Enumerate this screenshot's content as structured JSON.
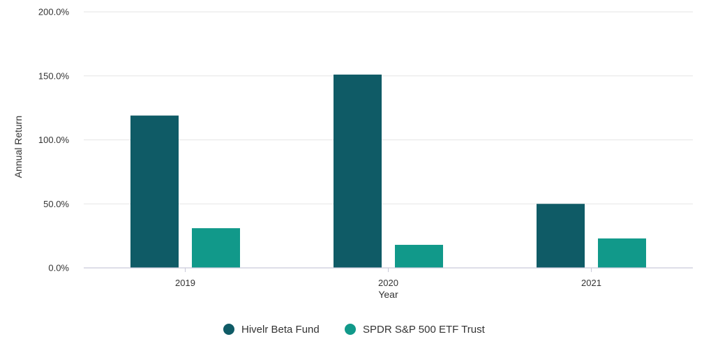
{
  "chart_data": {
    "type": "bar",
    "categories": [
      "2019",
      "2020",
      "2021"
    ],
    "series": [
      {
        "name": "Hivelr Beta Fund",
        "values": [
          119.0,
          151.0,
          50.0
        ],
        "color": "#0f5b66"
      },
      {
        "name": "SPDR S&P 500 ETF Trust",
        "values": [
          31.0,
          18.0,
          23.0
        ],
        "color": "#11998a"
      }
    ],
    "xlabel": "Year",
    "ylabel": "Annual Return",
    "ylim": [
      0,
      200
    ],
    "yticks": [
      0,
      50,
      100,
      150,
      200
    ],
    "ytick_labels": [
      "0.0%",
      "50.0%",
      "100.0%",
      "150.0%",
      "200.0%"
    ],
    "grid": true,
    "legend_position": "bottom-center"
  }
}
